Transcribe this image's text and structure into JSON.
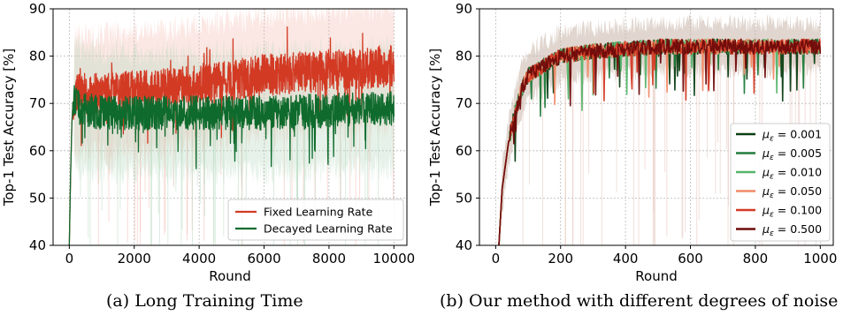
{
  "captions": {
    "a": "(a) Long Training Time",
    "b": "(b) Our method with different degrees of noise"
  },
  "chart_data": [
    {
      "type": "line",
      "xlabel": "Round",
      "ylabel": "Top-1 Test Accuracy [%]",
      "xlim": [
        -500,
        10400
      ],
      "ylim": [
        40,
        90
      ],
      "xticks": [
        0,
        2000,
        4000,
        6000,
        8000,
        10000
      ],
      "yticks": [
        40,
        50,
        60,
        70,
        80,
        90
      ],
      "grid": true,
      "legend_position": "lower-right",
      "series": [
        {
          "name": "Fixed Learning Rate",
          "color": "#d33a24",
          "band_color": "#f4b9b0",
          "points": [
            [
              0,
              40
            ],
            [
              40,
              55
            ],
            [
              80,
              66
            ],
            [
              120,
              71
            ],
            [
              300,
              72
            ],
            [
              1000,
              72
            ],
            [
              2000,
              72.5
            ],
            [
              3000,
              73
            ],
            [
              4000,
              74
            ],
            [
              5000,
              75
            ],
            [
              6000,
              76
            ],
            [
              7000,
              76.5
            ],
            [
              8000,
              77
            ],
            [
              9000,
              77.5
            ],
            [
              10000,
              78
            ]
          ],
          "noise": 2.2,
          "band": 12
        },
        {
          "name": "Decayed Learning Rate",
          "color": "#0f6b2d",
          "band_color": "#b7d9c0",
          "points": [
            [
              0,
              40
            ],
            [
              40,
              55
            ],
            [
              80,
              66
            ],
            [
              120,
              71
            ],
            [
              300,
              69
            ],
            [
              1000,
              68
            ],
            [
              2000,
              68
            ],
            [
              4000,
              68
            ],
            [
              6000,
              68
            ],
            [
              8000,
              68.5
            ],
            [
              10000,
              69
            ]
          ],
          "noise": 1.8,
          "band": 12
        }
      ]
    },
    {
      "type": "line",
      "xlabel": "Round",
      "ylabel": "Top-1 Test Accuracy [%]",
      "xlim": [
        -50,
        1040
      ],
      "ylim": [
        40,
        90
      ],
      "xticks": [
        0,
        200,
        400,
        600,
        800,
        1000
      ],
      "yticks": [
        40,
        50,
        60,
        70,
        80,
        90
      ],
      "grid": true,
      "legend_position": "lower-right",
      "base_points": [
        [
          0,
          32
        ],
        [
          10,
          40
        ],
        [
          20,
          52
        ],
        [
          40,
          62
        ],
        [
          60,
          68
        ],
        [
          80,
          73
        ],
        [
          100,
          76
        ],
        [
          150,
          78
        ],
        [
          200,
          80
        ],
        [
          300,
          81
        ],
        [
          400,
          81.5
        ],
        [
          500,
          82
        ],
        [
          600,
          82
        ],
        [
          800,
          82
        ],
        [
          1000,
          82
        ]
      ],
      "band": 5,
      "band_color": "#c9b5a8",
      "series": [
        {
          "name": "μ_ε = 0.001",
          "label_mu": "μ",
          "label_sub": "ε",
          "label_value": " = 0.001",
          "color": "#0a3d12"
        },
        {
          "name": "μ_ε = 0.005",
          "label_mu": "μ",
          "label_sub": "ε",
          "label_value": " = 0.005",
          "color": "#1f7a3a"
        },
        {
          "name": "μ_ε = 0.010",
          "label_mu": "μ",
          "label_sub": "ε",
          "label_value": " = 0.010",
          "color": "#55b56a"
        },
        {
          "name": "μ_ε = 0.050",
          "label_mu": "μ",
          "label_sub": "ε",
          "label_value": " = 0.050",
          "color": "#f08a66"
        },
        {
          "name": "μ_ε = 0.100",
          "label_mu": "μ",
          "label_sub": "ε",
          "label_value": " = 0.100",
          "color": "#d33a24"
        },
        {
          "name": "μ_ε = 0.500",
          "label_mu": "μ",
          "label_sub": "ε",
          "label_value": " = 0.500",
          "color": "#6e0a0a"
        }
      ]
    }
  ]
}
